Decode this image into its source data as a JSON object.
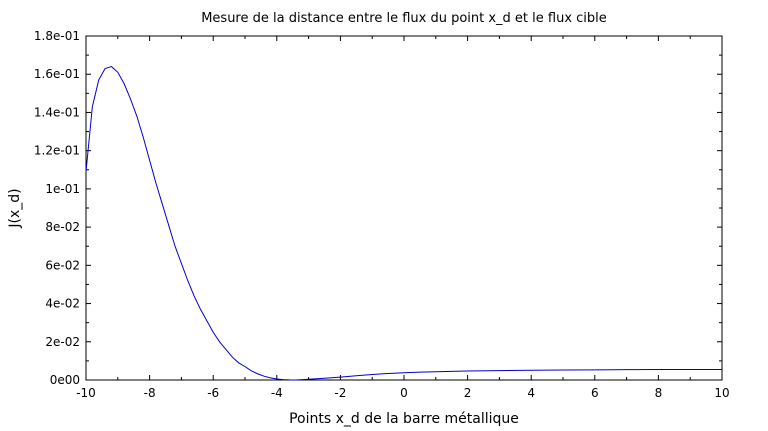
{
  "chart_data": {
    "type": "line",
    "title": "Mesure de la distance entre le flux du point x_d et le flux cible",
    "xlabel": "Points x_d de la barre métallique",
    "ylabel": "J(x_d)",
    "xlim": [
      -10,
      10
    ],
    "ylim": [
      0,
      0.18
    ],
    "x_ticks": [
      -10,
      -8,
      -6,
      -4,
      -2,
      0,
      2,
      4,
      6,
      8,
      10
    ],
    "x_tick_labels": [
      "-10",
      "-8",
      "-6",
      "-4",
      "-2",
      "0",
      "2",
      "4",
      "6",
      "8",
      "10"
    ],
    "y_ticks": [
      0,
      0.02,
      0.04,
      0.06,
      0.08,
      0.1,
      0.12,
      0.14,
      0.16,
      0.18
    ],
    "y_tick_labels": [
      "0e00",
      "2e-02",
      "4e-02",
      "6e-02",
      "8e-02",
      "1e-01",
      "1.2e-01",
      "1.4e-01",
      "1.6e-01",
      "1.8e-01"
    ],
    "grid": false,
    "legend": "none",
    "line_color": "#0000cc",
    "series": [
      {
        "x": [
          -10,
          -9.8,
          -9.6,
          -9.4,
          -9.2,
          -9.0,
          -8.8,
          -8.6,
          -8.4,
          -8.2,
          -8.0,
          -7.8,
          -7.6,
          -7.4,
          -7.2,
          -7.0,
          -6.8,
          -6.6,
          -6.4,
          -6.2,
          -6.0,
          -5.8,
          -5.6,
          -5.4,
          -5.2,
          -5.0,
          -4.8,
          -4.6,
          -4.4,
          -4.2,
          -4.0,
          -3.8,
          -3.6,
          -3.4,
          -3.2,
          -3.0,
          -2.5,
          -2.0,
          -1.5,
          -1.0,
          -0.5,
          0,
          0.5,
          1.0,
          1.5,
          2.0,
          3.0,
          4.0,
          5.0,
          6.0,
          7.0,
          8.0,
          9.0,
          10.0
        ],
        "y": [
          0.109,
          0.143,
          0.157,
          0.163,
          0.164,
          0.161,
          0.155,
          0.147,
          0.138,
          0.127,
          0.115,
          0.103,
          0.092,
          0.081,
          0.07,
          0.061,
          0.052,
          0.044,
          0.037,
          0.031,
          0.025,
          0.02,
          0.016,
          0.012,
          0.009,
          0.007,
          0.0048,
          0.0032,
          0.002,
          0.0011,
          0.0005,
          0.0002,
          5e-05,
          0.0,
          0.0002,
          0.0004,
          0.0009,
          0.0015,
          0.0022,
          0.0029,
          0.0034,
          0.0038,
          0.0041,
          0.0043,
          0.0045,
          0.0047,
          0.0049,
          0.0051,
          0.0052,
          0.0053,
          0.0054,
          0.0055,
          0.0055,
          0.0055
        ]
      }
    ]
  }
}
